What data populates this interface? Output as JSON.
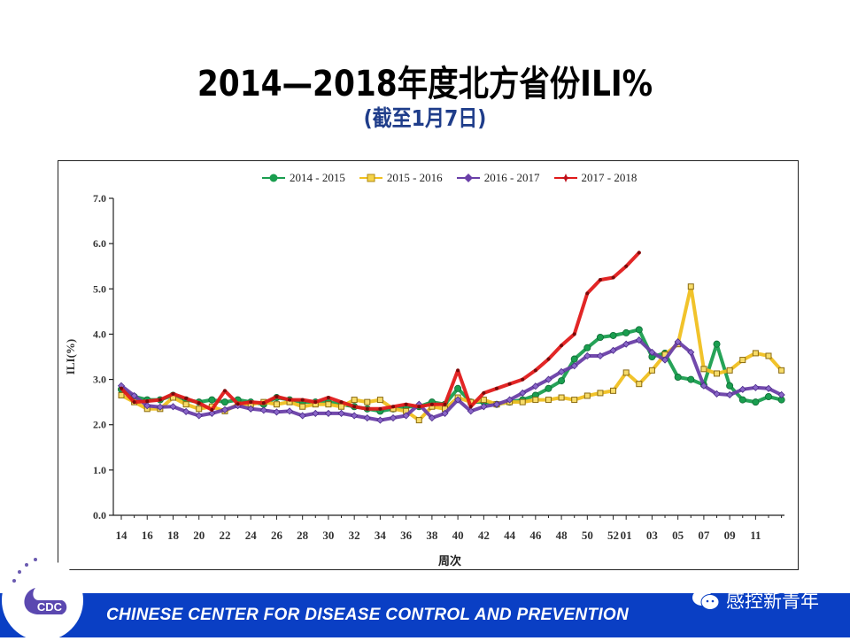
{
  "slide": {
    "title": "2014—2018年度北方省份ILI%",
    "subtitle": "(截至1月7日)",
    "footer_banner": "CHINESE CENTER FOR DISEASE CONTROL AND PREVENTION",
    "watermark": "感控新青年",
    "logo_text": "CDC",
    "logo_ring_text": "CHINESE CENTER FOR DISEASE CONTROL AND PREVENTION"
  },
  "chart_data": {
    "type": "line",
    "title": "",
    "xlabel": "周次",
    "ylabel": "ILI(%)",
    "ylim": [
      0,
      7
    ],
    "yticks": [
      "0.0",
      "1.0",
      "2.0",
      "3.0",
      "4.0",
      "5.0",
      "6.0",
      "7.0"
    ],
    "x": [
      "14",
      "15",
      "16",
      "17",
      "18",
      "19",
      "20",
      "21",
      "22",
      "23",
      "24",
      "25",
      "26",
      "27",
      "28",
      "29",
      "30",
      "31",
      "32",
      "33",
      "34",
      "35",
      "36",
      "37",
      "38",
      "39",
      "40",
      "41",
      "42",
      "43",
      "44",
      "45",
      "46",
      "47",
      "48",
      "49",
      "50",
      "51",
      "52",
      "01",
      "02",
      "03",
      "04",
      "05",
      "06",
      "07",
      "08",
      "09",
      "10",
      "11",
      "12",
      "13"
    ],
    "xtick_labels": [
      "14",
      "16",
      "18",
      "20",
      "22",
      "24",
      "26",
      "28",
      "30",
      "32",
      "34",
      "36",
      "38",
      "40",
      "42",
      "44",
      "46",
      "48",
      "50",
      "52",
      "01",
      "03",
      "05",
      "07",
      "09",
      "11"
    ],
    "legend_position": "top",
    "grid": false,
    "series": [
      {
        "name": "2014 - 2015",
        "color": "#1a9e4f",
        "marker": "circle",
        "values": [
          2.78,
          2.62,
          2.55,
          2.55,
          2.65,
          2.55,
          2.5,
          2.55,
          2.5,
          2.55,
          2.5,
          2.45,
          2.6,
          2.55,
          2.5,
          2.5,
          2.5,
          2.45,
          2.4,
          2.35,
          2.3,
          2.35,
          2.4,
          2.4,
          2.5,
          2.45,
          2.8,
          2.5,
          2.5,
          2.45,
          2.5,
          2.55,
          2.65,
          2.8,
          2.97,
          3.45,
          3.7,
          3.93,
          3.97,
          4.03,
          4.1,
          3.5,
          3.58,
          3.05,
          3.0,
          2.88,
          3.78,
          2.86,
          2.55,
          2.5,
          2.62,
          2.55
        ]
      },
      {
        "name": "2015 - 2016",
        "color": "#f0c020",
        "marker": "square",
        "values": [
          2.65,
          2.5,
          2.35,
          2.35,
          2.6,
          2.45,
          2.35,
          2.4,
          2.3,
          2.45,
          2.45,
          2.5,
          2.45,
          2.5,
          2.4,
          2.45,
          2.45,
          2.4,
          2.55,
          2.5,
          2.55,
          2.35,
          2.3,
          2.1,
          2.4,
          2.35,
          2.6,
          2.5,
          2.55,
          2.45,
          2.5,
          2.5,
          2.55,
          2.55,
          2.6,
          2.55,
          2.64,
          2.7,
          2.75,
          3.15,
          2.9,
          3.2,
          3.55,
          3.78,
          5.05,
          3.23,
          3.13,
          3.2,
          3.43,
          3.58,
          3.52,
          3.2
        ]
      },
      {
        "name": "2016 - 2017",
        "color": "#6a3fa8",
        "marker": "diamond",
        "values": [
          2.86,
          2.64,
          2.42,
          2.39,
          2.4,
          2.29,
          2.2,
          2.25,
          2.33,
          2.42,
          2.35,
          2.32,
          2.28,
          2.3,
          2.2,
          2.25,
          2.25,
          2.25,
          2.2,
          2.15,
          2.1,
          2.15,
          2.2,
          2.45,
          2.15,
          2.25,
          2.55,
          2.3,
          2.4,
          2.45,
          2.55,
          2.7,
          2.85,
          3.0,
          3.17,
          3.3,
          3.52,
          3.52,
          3.64,
          3.78,
          3.87,
          3.6,
          3.43,
          3.83,
          3.6,
          2.86,
          2.68,
          2.66,
          2.78,
          2.82,
          2.8,
          2.66
        ]
      },
      {
        "name": "2017 - 2018",
        "color": "#e01a1a",
        "marker": "star",
        "values": [
          2.8,
          2.5,
          2.52,
          2.55,
          2.68,
          2.58,
          2.48,
          2.33,
          2.75,
          2.46,
          2.5,
          2.48,
          2.62,
          2.55,
          2.55,
          2.5,
          2.6,
          2.5,
          2.4,
          2.35,
          2.35,
          2.4,
          2.45,
          2.4,
          2.45,
          2.45,
          3.2,
          2.4,
          2.7,
          2.8,
          2.9,
          3.0,
          3.2,
          3.45,
          3.75,
          4.0,
          4.9,
          5.2,
          5.25,
          5.5,
          5.8
        ]
      }
    ]
  }
}
